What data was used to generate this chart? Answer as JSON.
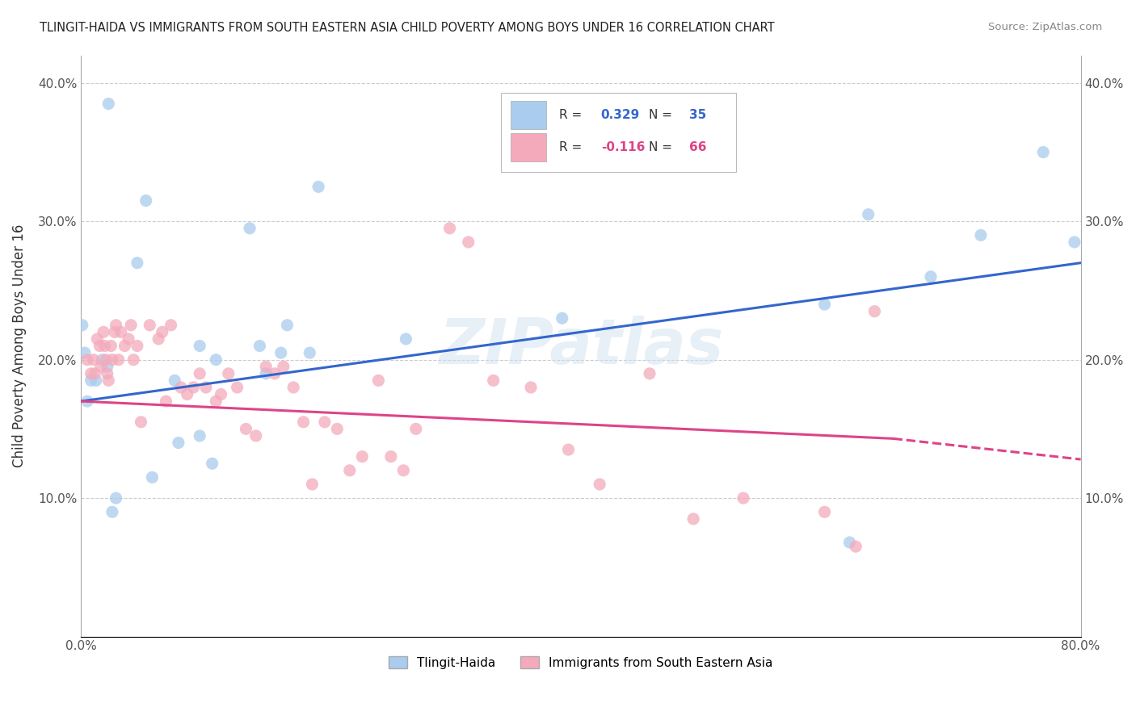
{
  "title": "TLINGIT-HAIDA VS IMMIGRANTS FROM SOUTH EASTERN ASIA CHILD POVERTY AMONG BOYS UNDER 16 CORRELATION CHART",
  "source": "Source: ZipAtlas.com",
  "ylabel": "Child Poverty Among Boys Under 16",
  "xlim": [
    0,
    0.8
  ],
  "ylim": [
    0,
    0.42
  ],
  "xticks": [
    0.0,
    0.1,
    0.2,
    0.3,
    0.4,
    0.5,
    0.6,
    0.7,
    0.8
  ],
  "yticks": [
    0.0,
    0.1,
    0.2,
    0.3,
    0.4
  ],
  "blue_R": "0.329",
  "blue_N": "35",
  "pink_R": "-0.116",
  "pink_N": "66",
  "blue_color": "#aaccee",
  "pink_color": "#f4aabb",
  "blue_line_color": "#3366cc",
  "pink_line_color": "#dd4488",
  "watermark": "ZIPatlas",
  "blue_points_x": [
    0.022,
    0.057,
    0.095,
    0.105,
    0.135,
    0.001,
    0.003,
    0.005,
    0.008,
    0.012,
    0.017,
    0.021,
    0.025,
    0.028,
    0.045,
    0.052,
    0.075,
    0.078,
    0.095,
    0.108,
    0.143,
    0.148,
    0.16,
    0.165,
    0.183,
    0.19,
    0.26,
    0.385,
    0.595,
    0.615,
    0.63,
    0.68,
    0.72,
    0.77,
    0.795
  ],
  "blue_points_y": [
    0.385,
    0.115,
    0.145,
    0.125,
    0.295,
    0.225,
    0.205,
    0.17,
    0.185,
    0.185,
    0.2,
    0.195,
    0.09,
    0.1,
    0.27,
    0.315,
    0.185,
    0.14,
    0.21,
    0.2,
    0.21,
    0.19,
    0.205,
    0.225,
    0.205,
    0.325,
    0.215,
    0.23,
    0.24,
    0.068,
    0.305,
    0.26,
    0.29,
    0.35,
    0.285
  ],
  "pink_points_x": [
    0.005,
    0.008,
    0.01,
    0.011,
    0.013,
    0.015,
    0.016,
    0.018,
    0.019,
    0.02,
    0.021,
    0.022,
    0.024,
    0.025,
    0.027,
    0.028,
    0.03,
    0.032,
    0.035,
    0.038,
    0.04,
    0.042,
    0.045,
    0.048,
    0.055,
    0.062,
    0.065,
    0.068,
    0.072,
    0.08,
    0.085,
    0.09,
    0.095,
    0.1,
    0.108,
    0.112,
    0.118,
    0.125,
    0.132,
    0.14,
    0.148,
    0.155,
    0.162,
    0.17,
    0.178,
    0.185,
    0.195,
    0.205,
    0.215,
    0.225,
    0.238,
    0.248,
    0.258,
    0.268,
    0.295,
    0.31,
    0.33,
    0.36,
    0.39,
    0.415,
    0.455,
    0.49,
    0.53,
    0.595,
    0.62,
    0.635
  ],
  "pink_points_y": [
    0.2,
    0.19,
    0.2,
    0.19,
    0.215,
    0.21,
    0.195,
    0.22,
    0.21,
    0.2,
    0.19,
    0.185,
    0.21,
    0.2,
    0.22,
    0.225,
    0.2,
    0.22,
    0.21,
    0.215,
    0.225,
    0.2,
    0.21,
    0.155,
    0.225,
    0.215,
    0.22,
    0.17,
    0.225,
    0.18,
    0.175,
    0.18,
    0.19,
    0.18,
    0.17,
    0.175,
    0.19,
    0.18,
    0.15,
    0.145,
    0.195,
    0.19,
    0.195,
    0.18,
    0.155,
    0.11,
    0.155,
    0.15,
    0.12,
    0.13,
    0.185,
    0.13,
    0.12,
    0.15,
    0.295,
    0.285,
    0.185,
    0.18,
    0.135,
    0.11,
    0.19,
    0.085,
    0.1,
    0.09,
    0.065,
    0.235
  ]
}
